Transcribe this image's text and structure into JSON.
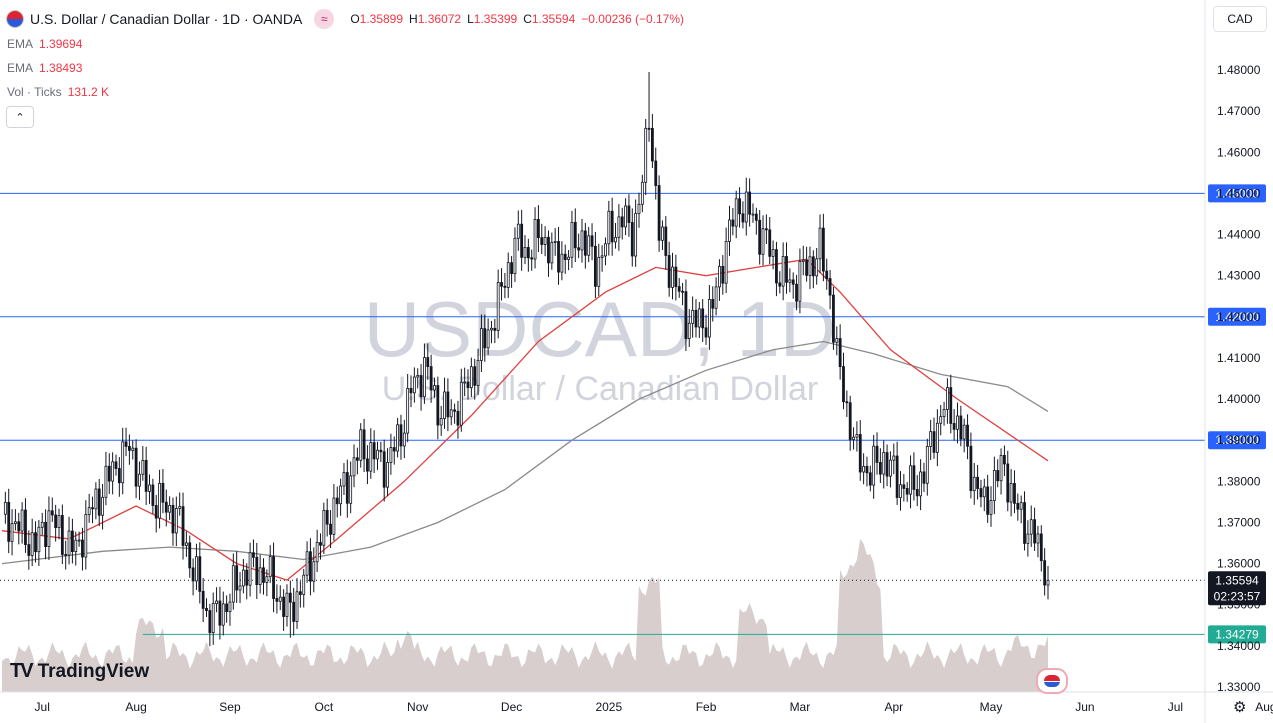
{
  "header": {
    "title": "U.S. Dollar / Canadian Dollar · 1D · OANDA",
    "ohlc": {
      "o_label": "O",
      "o": "1.35899",
      "h_label": "H",
      "h": "1.36072",
      "l_label": "L",
      "l": "1.35399",
      "c_label": "C",
      "c": "1.35594",
      "change": "−0.00236 (−0.17%)"
    }
  },
  "indicators": [
    {
      "label": "EMA",
      "value": "1.39694"
    },
    {
      "label": "EMA",
      "value": "1.38493"
    },
    {
      "label": "Vol · Ticks",
      "value": "131.2 K"
    }
  ],
  "currency_button": "CAD",
  "watermark": {
    "symbol": "USDCAD, 1D",
    "name": "U.S. Dollar / Canadian Dollar"
  },
  "brand": "TradingView",
  "colors": {
    "up": "#131722",
    "down": "#131722",
    "ema_fast": "#e0403f",
    "ema_slow": "#8a8a8a",
    "hline": "#2962ff",
    "support": "#22ab94",
    "price_tag": "#131722",
    "level_tag": "#2962ff",
    "vol_up": "#b2dfdb",
    "vol_down": "#faa1a4"
  },
  "chart_data": {
    "type": "candlestick",
    "symbol": "USDCAD",
    "timeframe": "1D",
    "y_axis": {
      "min": 1.33,
      "max": 1.48,
      "ticks": [
        "1.48000",
        "1.47000",
        "1.46000",
        "1.45000",
        "1.44000",
        "1.43000",
        "1.42000",
        "1.41000",
        "1.40000",
        "1.39000",
        "1.38000",
        "1.37000",
        "1.36000",
        "1.35000",
        "1.34000",
        "1.33000"
      ]
    },
    "x_axis": {
      "ticks": [
        "Jul",
        "Aug",
        "Sep",
        "Oct",
        "Nov",
        "Dec",
        "2025",
        "Feb",
        "Mar",
        "Apr",
        "May",
        "Jun",
        "Jul",
        "Aug"
      ]
    },
    "horizontal_levels": [
      {
        "value": 1.45,
        "label": "1.45000"
      },
      {
        "value": 1.42,
        "label": "1.42000"
      },
      {
        "value": 1.39,
        "label": "1.39000"
      },
      {
        "value": 1.34279,
        "label": "1.34279"
      }
    ],
    "last_price": {
      "value": 1.35594,
      "label": "1.35594",
      "countdown": "02:23:57"
    },
    "price_path": [
      [
        0,
        1.372
      ],
      [
        6,
        1.368
      ],
      [
        10,
        1.364
      ],
      [
        14,
        1.372
      ],
      [
        18,
        1.366
      ],
      [
        22,
        1.363
      ],
      [
        26,
        1.372
      ],
      [
        30,
        1.378
      ],
      [
        34,
        1.384
      ],
      [
        38,
        1.388
      ],
      [
        41,
        1.382
      ],
      [
        45,
        1.376
      ],
      [
        48,
        1.374
      ],
      [
        52,
        1.372
      ],
      [
        55,
        1.364
      ],
      [
        58,
        1.356
      ],
      [
        61,
        1.348
      ],
      [
        64,
        1.347
      ],
      [
        68,
        1.352
      ],
      [
        72,
        1.358
      ],
      [
        76,
        1.359
      ],
      [
        80,
        1.356
      ],
      [
        85,
        1.348
      ],
      [
        88,
        1.352
      ],
      [
        92,
        1.36
      ],
      [
        95,
        1.366
      ],
      [
        99,
        1.374
      ],
      [
        103,
        1.38
      ],
      [
        107,
        1.388
      ],
      [
        111,
        1.386
      ],
      [
        115,
        1.384
      ],
      [
        119,
        1.392
      ],
      [
        122,
        1.402
      ],
      [
        126,
        1.408
      ],
      [
        130,
        1.398
      ],
      [
        134,
        1.396
      ],
      [
        138,
        1.402
      ],
      [
        141,
        1.408
      ],
      [
        145,
        1.416
      ],
      [
        149,
        1.426
      ],
      [
        153,
        1.438
      ],
      [
        157,
        1.436
      ],
      [
        161,
        1.44
      ],
      [
        165,
        1.434
      ],
      [
        169,
        1.436
      ],
      [
        173,
        1.44
      ],
      [
        177,
        1.432
      ],
      [
        181,
        1.44
      ],
      [
        185,
        1.444
      ],
      [
        188,
        1.44
      ],
      [
        191,
        1.452
      ],
      [
        193,
        1.47
      ],
      [
        196,
        1.44
      ],
      [
        200,
        1.43
      ],
      [
        204,
        1.42
      ],
      [
        208,
        1.418
      ],
      [
        212,
        1.422
      ],
      [
        216,
        1.438
      ],
      [
        220,
        1.448
      ],
      [
        224,
        1.444
      ],
      [
        228,
        1.438
      ],
      [
        232,
        1.43
      ],
      [
        236,
        1.428
      ],
      [
        240,
        1.432
      ],
      [
        244,
        1.436
      ],
      [
        247,
        1.426
      ],
      [
        249,
        1.41
      ],
      [
        252,
        1.398
      ],
      [
        255,
        1.386
      ],
      [
        259,
        1.382
      ],
      [
        263,
        1.386
      ],
      [
        267,
        1.38
      ],
      [
        271,
        1.378
      ],
      [
        275,
        1.382
      ],
      [
        278,
        1.392
      ],
      [
        281,
        1.398
      ],
      [
        284,
        1.396
      ],
      [
        287,
        1.39
      ],
      [
        290,
        1.38
      ],
      [
        293,
        1.374
      ],
      [
        296,
        1.38
      ],
      [
        299,
        1.384
      ],
      [
        302,
        1.374
      ],
      [
        305,
        1.37
      ],
      [
        308,
        1.366
      ],
      [
        311,
        1.36
      ],
      [
        312,
        1.3559
      ]
    ],
    "ema_fast": [
      [
        0,
        1.368
      ],
      [
        20,
        1.366
      ],
      [
        40,
        1.374
      ],
      [
        55,
        1.368
      ],
      [
        70,
        1.36
      ],
      [
        85,
        1.356
      ],
      [
        100,
        1.366
      ],
      [
        120,
        1.38
      ],
      [
        140,
        1.396
      ],
      [
        160,
        1.414
      ],
      [
        180,
        1.426
      ],
      [
        195,
        1.432
      ],
      [
        210,
        1.43
      ],
      [
        225,
        1.432
      ],
      [
        240,
        1.434
      ],
      [
        250,
        1.426
      ],
      [
        265,
        1.412
      ],
      [
        285,
        1.4
      ],
      [
        312,
        1.385
      ]
    ],
    "ema_slow": [
      [
        0,
        1.36
      ],
      [
        30,
        1.363
      ],
      [
        50,
        1.364
      ],
      [
        70,
        1.363
      ],
      [
        90,
        1.361
      ],
      [
        110,
        1.364
      ],
      [
        130,
        1.37
      ],
      [
        150,
        1.378
      ],
      [
        170,
        1.39
      ],
      [
        190,
        1.4
      ],
      [
        210,
        1.407
      ],
      [
        230,
        1.412
      ],
      [
        245,
        1.414
      ],
      [
        260,
        1.411
      ],
      [
        280,
        1.406
      ],
      [
        300,
        1.403
      ],
      [
        312,
        1.397
      ]
    ],
    "volume": {
      "label": "Vol · Ticks",
      "last": "131.2 K"
    }
  }
}
